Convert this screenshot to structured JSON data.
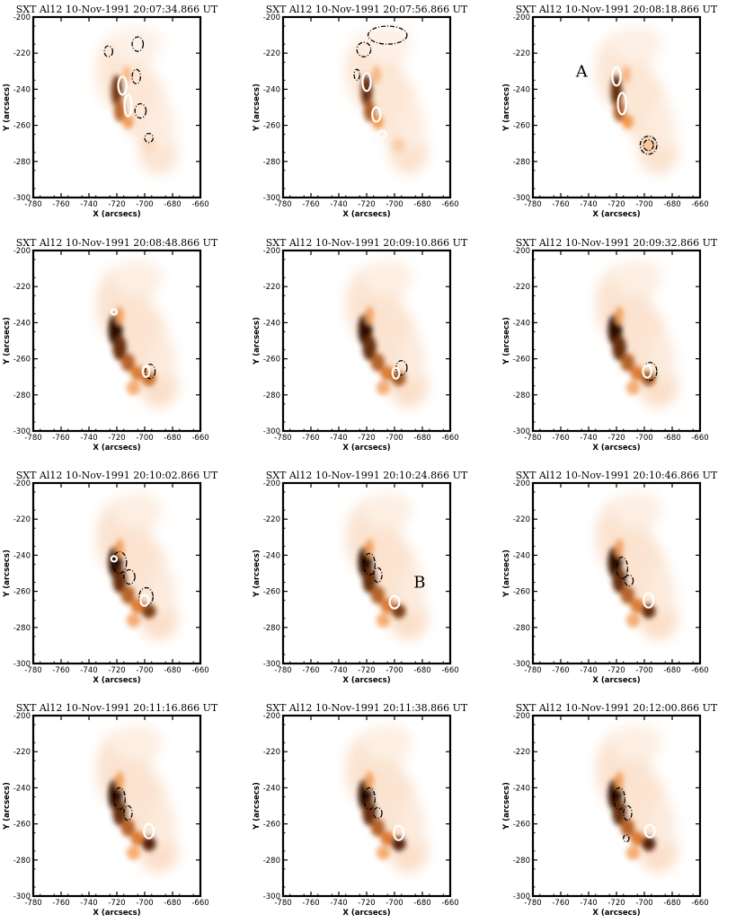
{
  "chart_data": {
    "type": "heatmap",
    "grid_layout": "4 rows x 3 columns of image panels",
    "colormap": "white-orange-brown (SXT intensity)",
    "colors": {
      "cmap_low": "#ffffff",
      "cmap_mid": "#f08a3a",
      "cmap_high": "#2a0800",
      "white_contour": "#ffffff",
      "black_contour": "#000000"
    },
    "xlabel": "X (arcsecs)",
    "ylabel": "Y (arcsecs)",
    "xlim": [
      -780,
      -660
    ],
    "ylim": [
      -300,
      -200
    ],
    "xticks": [
      "-780",
      "-760",
      "-740",
      "-720",
      "-700",
      "-680",
      "-660"
    ],
    "yticks": [
      "-200",
      "-220",
      "-240",
      "-260",
      "-280",
      "-300"
    ],
    "contours": {
      "white": "solid white contours overlaid on the SXT image",
      "black": "dash-dot black contours overlaid on the SXT image"
    },
    "panels": [
      {
        "title": "SXT Al12   10-Nov-1991  20:07:34.866  UT",
        "intensity": 0.85,
        "arc_extent": "upper",
        "footpoint_strength": 0.15,
        "white_contours": [
          {
            "x": -716,
            "y": -238,
            "rx": 3,
            "ry": 5
          },
          {
            "x": -712,
            "y": -249,
            "rx": 2.5,
            "ry": 6
          }
        ],
        "black_contours": [
          {
            "x": -726,
            "y": -219,
            "rx": 3,
            "ry": 3
          },
          {
            "x": -705,
            "y": -215,
            "rx": 4,
            "ry": 4
          },
          {
            "x": -706,
            "y": -233,
            "rx": 3,
            "ry": 4
          },
          {
            "x": -703,
            "y": -252,
            "rx": 4,
            "ry": 4
          },
          {
            "x": -697,
            "y": -267,
            "rx": 3,
            "ry": 2.5
          }
        ],
        "labels": []
      },
      {
        "title": "SXT Al12   10-Nov-1991  20:07:56.866  UT",
        "intensity": 0.9,
        "arc_extent": "upper",
        "footpoint_strength": 0.2,
        "white_contours": [
          {
            "x": -720,
            "y": -236,
            "rx": 3,
            "ry": 5
          },
          {
            "x": -713,
            "y": -254,
            "rx": 3,
            "ry": 4
          },
          {
            "x": -709,
            "y": -265,
            "rx": 3,
            "ry": 2
          }
        ],
        "black_contours": [
          {
            "x": -722,
            "y": -218,
            "rx": 5,
            "ry": 4
          },
          {
            "x": -705,
            "y": -210,
            "rx": 14,
            "ry": 5
          },
          {
            "x": -727,
            "y": -232,
            "rx": 2,
            "ry": 3
          }
        ],
        "labels": []
      },
      {
        "title": "SXT Al12   10-Nov-1991  20:08:18.866  UT",
        "intensity": 0.9,
        "arc_extent": "upper",
        "footpoint_strength": 0.25,
        "white_contours": [
          {
            "x": -720,
            "y": -233,
            "rx": 3,
            "ry": 5
          },
          {
            "x": -716,
            "y": -248,
            "rx": 3,
            "ry": 6
          }
        ],
        "black_contours": [
          {
            "x": -697,
            "y": -271,
            "rx": 6,
            "ry": 5
          },
          {
            "x": -697,
            "y": -271,
            "rx": 3.5,
            "ry": 3
          }
        ],
        "labels": [
          {
            "text": "A",
            "x": -745,
            "y": -233
          }
        ]
      },
      {
        "title": "SXT Al12   10-Nov-1991  20:08:48.866  UT",
        "intensity": 1.0,
        "arc_extent": "full",
        "footpoint_strength": 0.6,
        "white_contours": [
          {
            "x": -722,
            "y": -234,
            "rx": 2,
            "ry": 1.5
          },
          {
            "x": -699,
            "y": -267,
            "rx": 2.5,
            "ry": 3
          }
        ],
        "black_contours": [
          {
            "x": -696,
            "y": -267,
            "rx": 3.5,
            "ry": 4
          }
        ],
        "labels": []
      },
      {
        "title": "SXT Al12   10-Nov-1991  20:09:10.866  UT",
        "intensity": 1.0,
        "arc_extent": "full",
        "footpoint_strength": 0.7,
        "white_contours": [
          {
            "x": -699,
            "y": -268,
            "rx": 2.5,
            "ry": 3
          }
        ],
        "black_contours": [
          {
            "x": -695,
            "y": -265,
            "rx": 4,
            "ry": 4
          }
        ],
        "labels": []
      },
      {
        "title": "SXT Al12   10-Nov-1991  20:09:32.866  UT",
        "intensity": 1.0,
        "arc_extent": "full",
        "footpoint_strength": 0.7,
        "white_contours": [
          {
            "x": -698,
            "y": -267,
            "rx": 3,
            "ry": 3.5
          }
        ],
        "black_contours": [
          {
            "x": -696,
            "y": -267,
            "rx": 5,
            "ry": 5
          }
        ],
        "labels": []
      },
      {
        "title": "SXT Al12   10-Nov-1991  20:10:02.866  UT",
        "intensity": 1.0,
        "arc_extent": "full",
        "footpoint_strength": 0.8,
        "white_contours": [
          {
            "x": -722,
            "y": -242,
            "rx": 2,
            "ry": 1.5
          },
          {
            "x": -700,
            "y": -265,
            "rx": 3,
            "ry": 3
          }
        ],
        "black_contours": [
          {
            "x": -718,
            "y": -244,
            "rx": 5,
            "ry": 6
          },
          {
            "x": -711,
            "y": -252,
            "rx": 4,
            "ry": 4
          },
          {
            "x": -699,
            "y": -263,
            "rx": 5,
            "ry": 5
          }
        ],
        "labels": []
      },
      {
        "title": "SXT Al12   10-Nov-1991  20:10:24.866  UT",
        "intensity": 1.0,
        "arc_extent": "full",
        "footpoint_strength": 0.8,
        "white_contours": [
          {
            "x": -700,
            "y": -266,
            "rx": 3.5,
            "ry": 3.5
          }
        ],
        "black_contours": [
          {
            "x": -718,
            "y": -245,
            "rx": 4,
            "ry": 6
          },
          {
            "x": -712,
            "y": -251,
            "rx": 3,
            "ry": 4
          }
        ],
        "labels": [
          {
            "text": "B",
            "x": -682,
            "y": -258
          }
        ]
      },
      {
        "title": "SXT Al12   10-Nov-1991  20:10:46.866  UT",
        "intensity": 1.0,
        "arc_extent": "full",
        "footpoint_strength": 0.85,
        "white_contours": [
          {
            "x": -697,
            "y": -265,
            "rx": 3.5,
            "ry": 4
          }
        ],
        "black_contours": [
          {
            "x": -716,
            "y": -247,
            "rx": 4,
            "ry": 6
          },
          {
            "x": -711,
            "y": -254,
            "rx": 3,
            "ry": 3
          }
        ],
        "labels": []
      },
      {
        "title": "SXT Al12   10-Nov-1991  20:11:16.866  UT",
        "intensity": 1.0,
        "arc_extent": "full",
        "footpoint_strength": 0.9,
        "white_contours": [
          {
            "x": -697,
            "y": -264,
            "rx": 3.5,
            "ry": 4
          }
        ],
        "black_contours": [
          {
            "x": -718,
            "y": -246,
            "rx": 4,
            "ry": 6
          },
          {
            "x": -712,
            "y": -254,
            "rx": 3,
            "ry": 4
          }
        ],
        "labels": []
      },
      {
        "title": "SXT Al12   10-Nov-1991  20:11:38.866  UT",
        "intensity": 1.0,
        "arc_extent": "full",
        "footpoint_strength": 0.9,
        "white_contours": [
          {
            "x": -697,
            "y": -265,
            "rx": 3.5,
            "ry": 4
          }
        ],
        "black_contours": [
          {
            "x": -718,
            "y": -246,
            "rx": 4,
            "ry": 6
          },
          {
            "x": -712,
            "y": -254,
            "rx": 3,
            "ry": 3
          }
        ],
        "labels": []
      },
      {
        "title": "SXT Al12   10-Nov-1991  20:12:00.866  UT",
        "intensity": 1.0,
        "arc_extent": "full",
        "footpoint_strength": 0.9,
        "white_contours": [
          {
            "x": -696,
            "y": -264,
            "rx": 3.5,
            "ry": 3.5
          }
        ],
        "black_contours": [
          {
            "x": -718,
            "y": -246,
            "rx": 4,
            "ry": 6
          },
          {
            "x": -712,
            "y": -254,
            "rx": 3,
            "ry": 4
          },
          {
            "x": -713,
            "y": -268,
            "rx": 2,
            "ry": 2
          }
        ],
        "labels": []
      }
    ]
  }
}
